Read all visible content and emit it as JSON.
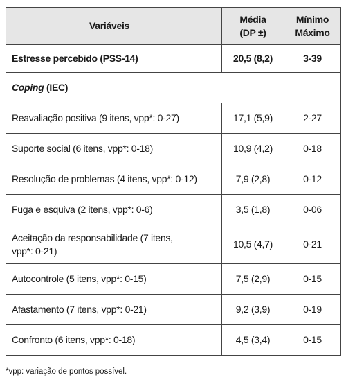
{
  "table": {
    "header": {
      "variable": "Variáveis",
      "mean": [
        "Média",
        "(DP ±)"
      ],
      "range": [
        "Mínimo",
        "Máximo"
      ]
    },
    "rows": [
      {
        "label": "Estresse percebido (PSS-14)",
        "mean": "20,5 (8,2)",
        "range": "3-39",
        "bold": true
      },
      {
        "label_italic": "Coping",
        "label": " (IEC)",
        "section": true
      },
      {
        "label": "Reavaliação positiva (9 itens, vpp*: 0-27)",
        "mean": "17,1 (5,9)",
        "range": "2-27"
      },
      {
        "label": "Suporte social (6 itens, vpp*: 0-18)",
        "mean": "10,9 (4,2)",
        "range": "0-18"
      },
      {
        "label": "Resolução de problemas (4 itens, vpp*: 0-12)",
        "mean": "7,9 (2,8)",
        "range": "0-12"
      },
      {
        "label": "Fuga e esquiva (2 itens, vpp*: 0-6)",
        "mean": "3,5 (1,8)",
        "range": "0-06"
      },
      {
        "label": [
          "Aceitação da responsabilidade (7 itens,",
          "vpp*: 0-21)"
        ],
        "mean": "10,5 (4,7)",
        "range": "0-21"
      },
      {
        "label": "Autocontrole (5 itens, vpp*: 0-15)",
        "mean": "7,5 (2,9)",
        "range": "0-15"
      },
      {
        "label": "Afastamento (7 itens, vpp*: 0-21)",
        "mean": "9,2 (3,9)",
        "range": "0-19"
      },
      {
        "label": "Confronto (6 itens, vpp*: 0-18)",
        "mean": "4,5 (3,4)",
        "range": "0-15"
      }
    ]
  },
  "footnote": "*vpp: variação de pontos possível."
}
